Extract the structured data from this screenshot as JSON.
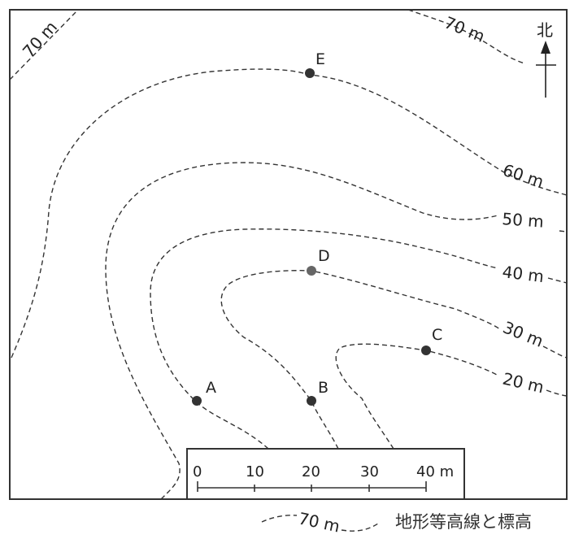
{
  "north_label": "北",
  "contours": [
    {
      "id": "nw70",
      "label": "70 m"
    },
    {
      "id": "ne70",
      "label": "70 m"
    },
    {
      "id": "c60",
      "label": "60 m"
    },
    {
      "id": "c50",
      "label": "50 m"
    },
    {
      "id": "c40",
      "label": "40 m"
    },
    {
      "id": "c30",
      "label": "30 m"
    },
    {
      "id": "c20",
      "label": "20 m"
    }
  ],
  "points": [
    {
      "name": "A"
    },
    {
      "name": "B"
    },
    {
      "name": "C"
    },
    {
      "name": "D"
    },
    {
      "name": "E"
    }
  ],
  "scale_bar": {
    "ticks": [
      "0",
      "10",
      "20",
      "30",
      "40 m"
    ]
  },
  "legend": {
    "sample_label": "70 m",
    "text": "地形等高線と標高"
  }
}
